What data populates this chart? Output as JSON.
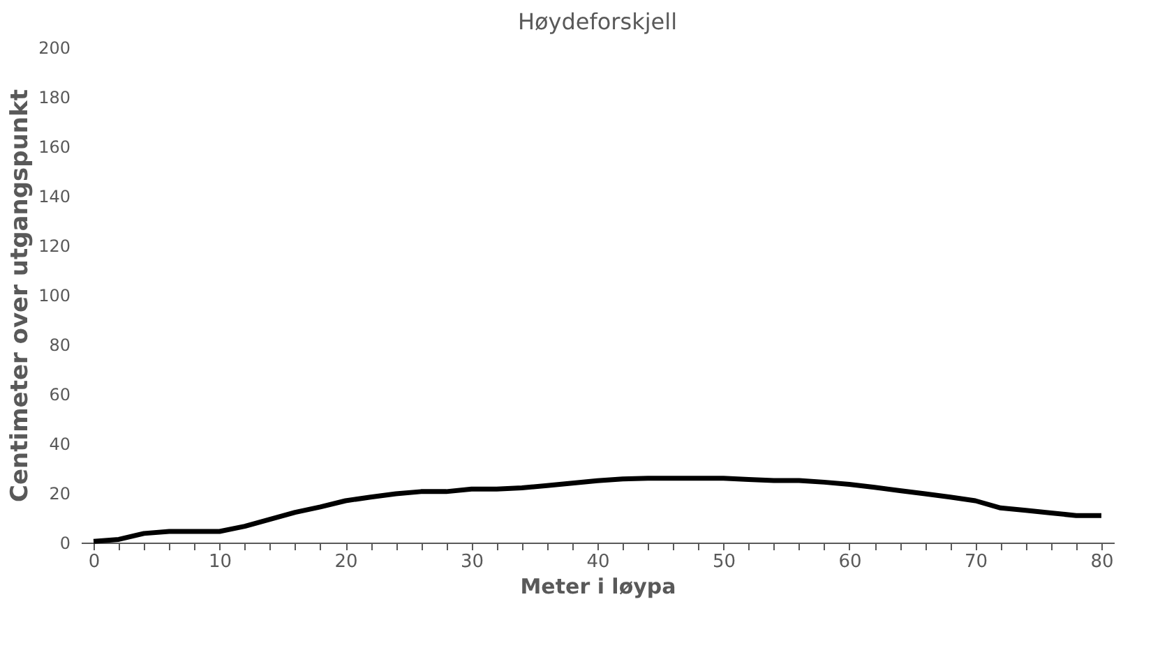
{
  "chart_data": {
    "type": "line",
    "title": "Høydeforskjell",
    "xlabel": "Meter i løypa",
    "ylabel": "Centimeter over utgangspunkt",
    "x": [
      0,
      2,
      4,
      6,
      8,
      10,
      12,
      14,
      16,
      18,
      20,
      22,
      24,
      26,
      28,
      30,
      32,
      34,
      36,
      38,
      40,
      42,
      44,
      46,
      48,
      50,
      52,
      54,
      56,
      58,
      60,
      62,
      64,
      66,
      68,
      70,
      72,
      74,
      76,
      78,
      80
    ],
    "series": [
      {
        "color": "#000000",
        "values": [
          0.5,
          1.3,
          3.7,
          4.5,
          4.5,
          4.5,
          6.6,
          9.4,
          12.2,
          14.4,
          16.9,
          18.4,
          19.7,
          20.6,
          20.6,
          21.6,
          21.6,
          22.1,
          23,
          24,
          25,
          25.7,
          26,
          26,
          26,
          26,
          25.5,
          25.1,
          25.1,
          24.4,
          23.5,
          22.3,
          21,
          19.7,
          18.4,
          16.9,
          14,
          13,
          12,
          10.9,
          10.9
        ]
      }
    ],
    "xlim": [
      -1,
      81
    ],
    "xticks": [
      0,
      {
        "value": 2,
        "label": null
      },
      {
        "value": 4,
        "label": null
      },
      {
        "value": 6,
        "label": null
      },
      {
        "value": 8,
        "label": null
      },
      10,
      {
        "value": 12,
        "label": null
      },
      {
        "value": 14,
        "label": null
      },
      {
        "value": 16,
        "label": null
      },
      {
        "value": 18,
        "label": null
      },
      20,
      {
        "value": 22,
        "label": null
      },
      {
        "value": 24,
        "label": null
      },
      {
        "value": 26,
        "label": null
      },
      {
        "value": 28,
        "label": null
      },
      30,
      {
        "value": 32,
        "label": null
      },
      {
        "value": 34,
        "label": null
      },
      {
        "value": 36,
        "label": null
      },
      {
        "value": 38,
        "label": null
      },
      40,
      {
        "value": 42,
        "label": null
      },
      {
        "value": 44,
        "label": null
      },
      {
        "value": 46,
        "label": null
      },
      {
        "value": 48,
        "label": null
      },
      50,
      {
        "value": 52,
        "label": null
      },
      {
        "value": 54,
        "label": null
      },
      {
        "value": 56,
        "label": null
      },
      {
        "value": 58,
        "label": null
      },
      60,
      {
        "value": 62,
        "label": null
      },
      {
        "value": 64,
        "label": null
      },
      {
        "value": 66,
        "label": null
      },
      {
        "value": 68,
        "label": null
      },
      70,
      {
        "value": 72,
        "label": null
      },
      {
        "value": 74,
        "label": null
      },
      {
        "value": 76,
        "label": null
      },
      {
        "value": 78,
        "label": null
      },
      80
    ],
    "ylim": [
      0,
      200
    ],
    "yticks": [
      0,
      20,
      40,
      60,
      80,
      100,
      120,
      140,
      160,
      180,
      200
    ],
    "grid": false,
    "legend": false,
    "marker": "none",
    "line_style": "solid"
  }
}
